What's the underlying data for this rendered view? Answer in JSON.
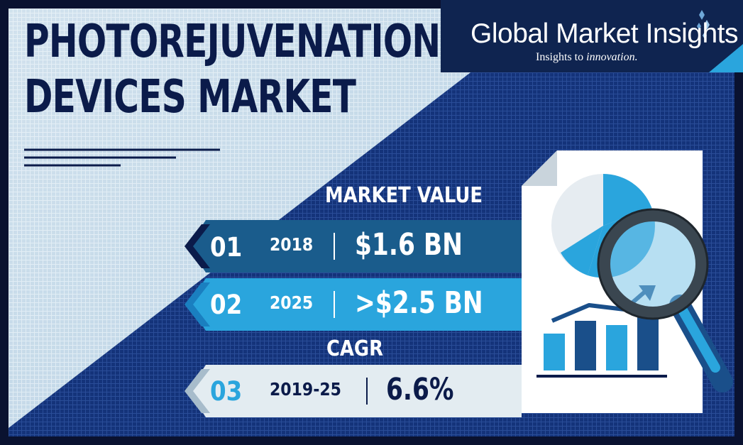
{
  "title": {
    "line1": "PHOTOREJUVENATION",
    "line2": "DEVICES MARKET"
  },
  "logo": {
    "name": "Global Market Insights",
    "tagline_prefix": "Insights to ",
    "tagline_emphasis": "innovation."
  },
  "market_value": {
    "label": "MARKET VALUE",
    "rows": [
      {
        "number": "01",
        "year": "2018",
        "value": "$1.6 BN"
      },
      {
        "number": "02",
        "year": "2025",
        "value": ">$2.5 BN"
      }
    ]
  },
  "cagr": {
    "label": "CAGR",
    "row": {
      "number": "03",
      "year": "2019-25",
      "value": "6.6%"
    }
  },
  "colors": {
    "navy": "#0b1b4a",
    "dark_blue": "#0f2450",
    "accent_blue": "#2aa5dd",
    "band_dark": "#1a5c8c",
    "band_light": "#e3ecf1"
  },
  "icons": [
    "report-document-icon",
    "pie-chart-icon",
    "bar-chart-icon",
    "magnifier-icon",
    "trend-arrow-icon"
  ]
}
